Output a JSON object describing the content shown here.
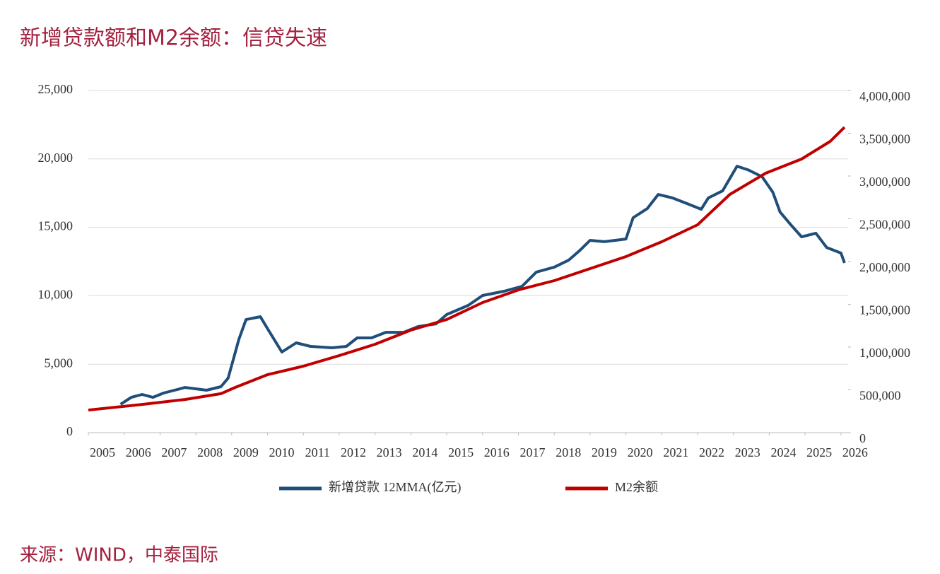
{
  "chart_data": {
    "type": "line",
    "title": "新增贷款额和M2余额：信贷失速",
    "source": "来源：WIND，中泰国际",
    "xlim": [
      2005,
      2026.2
    ],
    "xticks": [
      2005,
      2006,
      2007,
      2008,
      2009,
      2010,
      2011,
      2012,
      2013,
      2014,
      2015,
      2016,
      2017,
      2018,
      2019,
      2020,
      2021,
      2022,
      2023,
      2024,
      2025,
      2026
    ],
    "ylim": [
      0,
      25000
    ],
    "yticks": [
      0,
      {
        "value": 5000,
        "label": "5,000"
      },
      {
        "value": 10000,
        "label": "10,000"
      },
      {
        "value": 15000,
        "label": "15,000"
      },
      {
        "value": 20000,
        "label": "20,000"
      },
      {
        "value": 25000,
        "label": "25,000"
      }
    ],
    "y2lim": [
      0,
      4000000
    ],
    "y2ticks": [
      0,
      {
        "value": 500000,
        "label": "500,000"
      },
      {
        "value": 1000000,
        "label": "1,000,000"
      },
      {
        "value": 1500000,
        "label": "1,500,000"
      },
      {
        "value": 2000000,
        "label": "2,000,000"
      },
      {
        "value": 2500000,
        "label": "2,500,000"
      },
      {
        "value": 3000000,
        "label": "3,000,000"
      },
      {
        "value": 3500000,
        "label": "3,500,000"
      },
      {
        "value": 4000000,
        "label": "4,000,000"
      }
    ],
    "grid": true,
    "series": [
      {
        "name": "新增贷款 12MMA(亿元)",
        "color": "#1f4e79",
        "x": [
          2005.9,
          2006.2,
          2006.5,
          2006.8,
          2007.1,
          2007.7,
          2008.3,
          2008.7,
          2008.9,
          2009.2,
          2009.4,
          2009.8,
          2010.0,
          2010.4,
          2010.8,
          2011.2,
          2011.8,
          2012.2,
          2012.5,
          2012.9,
          2013.3,
          2013.8,
          2014.2,
          2014.7,
          2015.0,
          2015.6,
          2016.0,
          2016.6,
          2017.1,
          2017.5,
          2018.0,
          2018.4,
          2018.7,
          2019.0,
          2019.4,
          2020.0,
          2020.2,
          2020.6,
          2020.9,
          2021.3,
          2021.7,
          2022.1,
          2022.3,
          2022.7,
          2023.1,
          2023.4,
          2023.8,
          2024.1,
          2024.3,
          2024.6,
          2024.9,
          2025.3,
          2025.6,
          2026.0,
          2026.1
        ],
        "values": [
          2070,
          2580,
          2790,
          2580,
          2890,
          3300,
          3100,
          3360,
          3980,
          6820,
          8260,
          8470,
          7600,
          5890,
          6560,
          6300,
          6200,
          6300,
          6920,
          6920,
          7330,
          7330,
          7750,
          7950,
          8630,
          9300,
          10020,
          10330,
          10690,
          11730,
          12090,
          12600,
          13280,
          14050,
          13950,
          14150,
          15700,
          16380,
          17400,
          17150,
          16740,
          16320,
          17150,
          17670,
          19470,
          19210,
          18700,
          17560,
          16120,
          15190,
          14310,
          14570,
          13530,
          13120,
          12400
        ]
      },
      {
        "name": "M2余额",
        "color": "#c00000",
        "axis": "y2",
        "x": [
          2005,
          2006.5,
          2007.7,
          2008.7,
          2009.1,
          2010.0,
          2011.0,
          2012.0,
          2013.0,
          2014.0,
          2015.0,
          2016.0,
          2017.0,
          2018.0,
          2019.0,
          2020.0,
          2021.0,
          2022.0,
          2022.9,
          2023.9,
          2024.9,
          2025.7,
          2026.1
        ],
        "values": [
          264000,
          330000,
          388000,
          455000,
          529000,
          678000,
          777000,
          901000,
          1033000,
          1198000,
          1322000,
          1521000,
          1669000,
          1777000,
          1917000,
          2058000,
          2231000,
          2430000,
          2785000,
          3033000,
          3198000,
          3405000,
          3570000
        ]
      }
    ]
  }
}
